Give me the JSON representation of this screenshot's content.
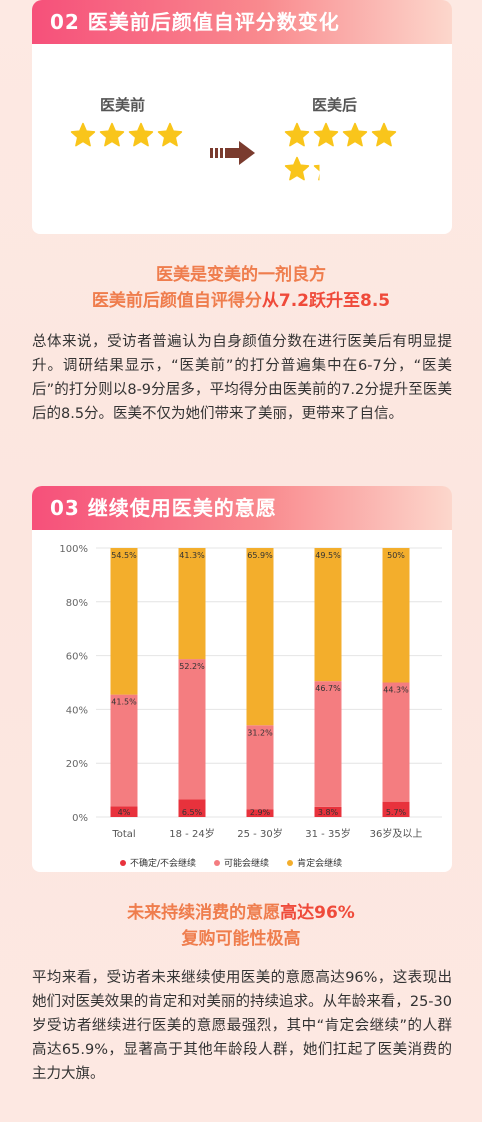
{
  "section2": {
    "title": "02 医美前后颜值自评分数变化",
    "before_label": "医美前",
    "after_label": "医美后",
    "before_rating": 7.2,
    "after_rating": 8.5,
    "arrow_icon": "right-arrow-icon",
    "star_color": "#f9c51b",
    "headline_line1": "医美是变美的一剂良方",
    "headline_line2_prefix": "医美前后颜值自评得分",
    "headline_line2_highlight": "从7.2跃升至8.5",
    "paragraph": "总体来说，受访者普遍认为自身颜值分数在进行医美后有明显提升。调研结果显示，“医美前”的打分普遍集中在6-7分，“医美后”的打分则以8-9分居多，平均得分由医美前的7.2分提升至医美后的8.5分。医美不仅为她们带来了美丽，更带来了自信。"
  },
  "section3": {
    "title": "03 继续使用医美的意愿",
    "headline_line1_prefix": "未来持续消费的意愿",
    "headline_line1_highlight": "高达96%",
    "headline_line2": "复购可能性极高",
    "paragraph": "平均来看，受访者未来继续使用医美的意愿高达96%，这表现出她们对医美效果的肯定和对美丽的持续追求。从年龄来看，25-30岁受访者继续进行医美的意愿最强烈，其中“肯定会继续”的人群高达65.9%，显著高于其他年龄段人群，她们扛起了医美消费的主力大旗。"
  },
  "chart_data": {
    "type": "bar",
    "stacked": true,
    "categories": [
      "Total",
      "18 - 24岁",
      "25 - 30岁",
      "31 - 35岁",
      "36岁及以上"
    ],
    "series": [
      {
        "name": "不确定/不会继续",
        "values": [
          4,
          6.5,
          2.9,
          3.8,
          5.7
        ],
        "labels": [
          "4%",
          "6.5%",
          "2.9%",
          "3.8%",
          "5.7%"
        ],
        "color": "#e8323c"
      },
      {
        "name": "可能会继续",
        "values": [
          41.5,
          52.2,
          31.2,
          46.7,
          44.3
        ],
        "labels": [
          "41.5%",
          "52.2%",
          "31.2%",
          "46.7%",
          "44.3%"
        ],
        "color": "#f47d80"
      },
      {
        "name": "肯定会继续",
        "values": [
          54.5,
          41.3,
          65.9,
          49.5,
          50
        ],
        "labels": [
          "54.5%",
          "41.3%",
          "65.9%",
          "49.5%",
          "50%"
        ],
        "color": "#f3ae2c"
      }
    ],
    "yticks": [
      "0%",
      "20%",
      "40%",
      "60%",
      "80%",
      "100%"
    ],
    "ylim": [
      0,
      100
    ],
    "grid": true,
    "legend_position": "bottom"
  }
}
